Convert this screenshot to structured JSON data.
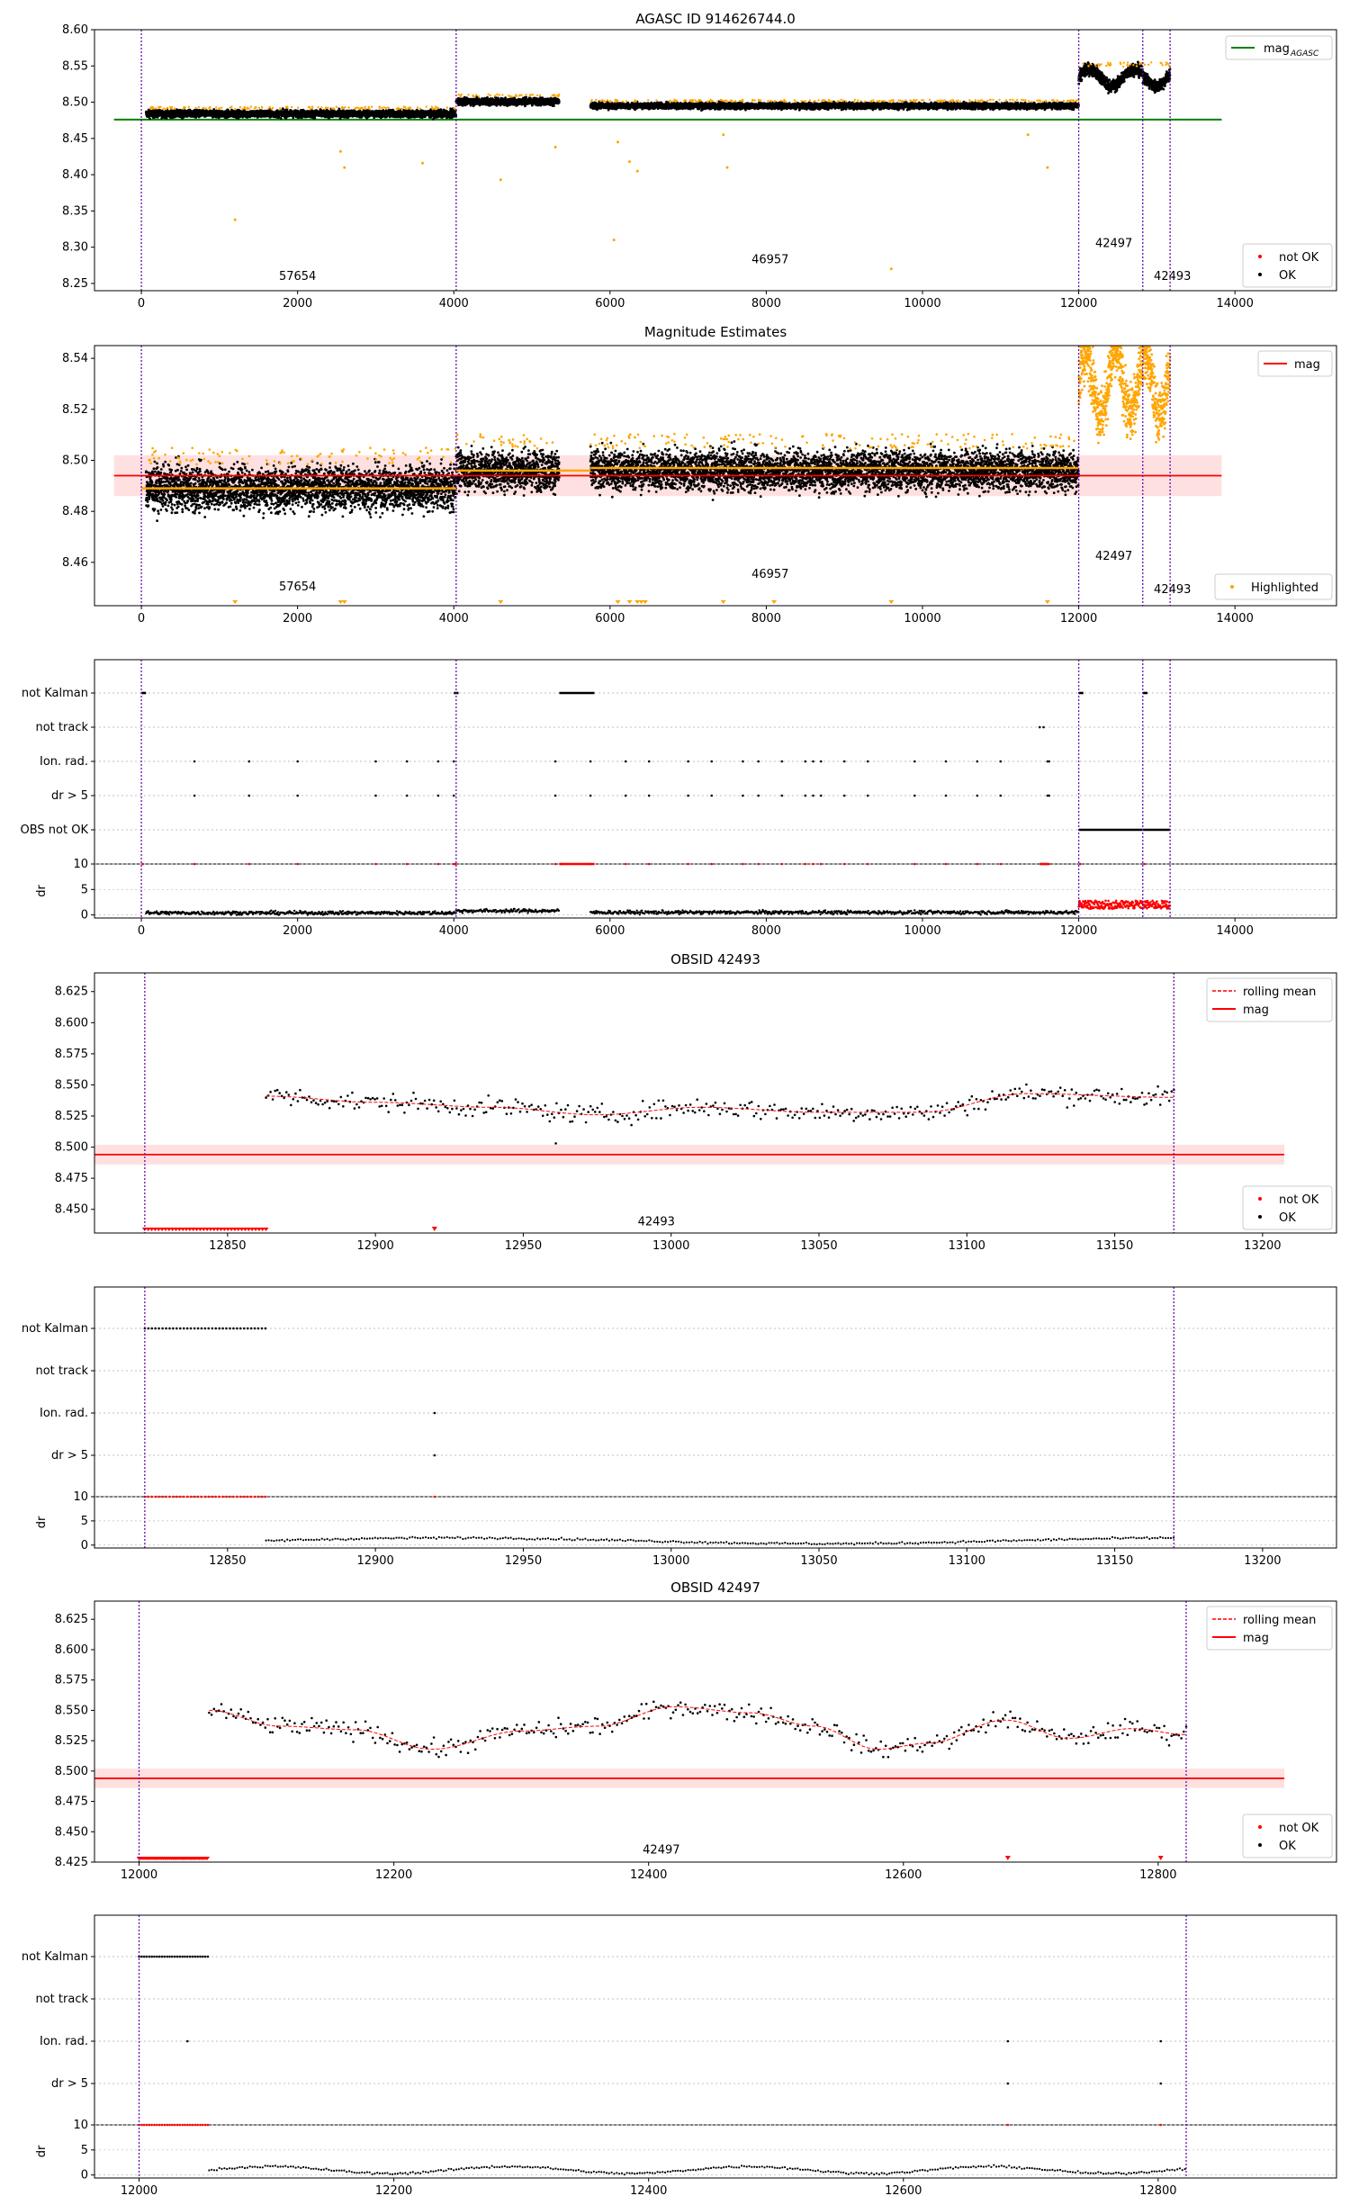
{
  "chart_data": [
    {
      "type": "scatter",
      "title": "AGASC ID 914626744.0",
      "xlim": [
        -600,
        15300
      ],
      "ylim": [
        8.24,
        8.6
      ],
      "xticks": [
        0,
        2000,
        4000,
        6000,
        8000,
        10000,
        12000,
        14000
      ],
      "yticks": [
        8.25,
        8.3,
        8.35,
        8.4,
        8.45,
        8.5,
        8.55,
        8.6
      ],
      "reference_line": {
        "name": "mag",
        "subscript": "AGASC",
        "value": 8.476,
        "color": "#008000"
      },
      "obs_boundaries": [
        0,
        4030,
        12000,
        12820,
        13170
      ],
      "series": [
        {
          "name": "not OK",
          "color": "#ff0000"
        },
        {
          "name": "OK",
          "color": "#000000"
        }
      ],
      "segments": [
        {
          "x": [
            60,
            4030
          ],
          "center": 8.484,
          "spread": 0.007
        },
        {
          "x": [
            4030,
            5350
          ],
          "center": 8.501,
          "spread": 0.007
        },
        {
          "x": [
            5750,
            12000
          ],
          "center": 8.495,
          "spread": 0.006
        },
        {
          "x": [
            12000,
            13170
          ],
          "center": 8.538,
          "spread": 0.012
        }
      ],
      "outliers": [
        {
          "x": 1200,
          "y": 8.338
        },
        {
          "x": 2550,
          "y": 8.432
        },
        {
          "x": 2600,
          "y": 8.41
        },
        {
          "x": 3600,
          "y": 8.416
        },
        {
          "x": 4600,
          "y": 8.393
        },
        {
          "x": 5300,
          "y": 8.438
        },
        {
          "x": 6050,
          "y": 8.31
        },
        {
          "x": 6100,
          "y": 8.445
        },
        {
          "x": 6250,
          "y": 8.418
        },
        {
          "x": 6350,
          "y": 8.405
        },
        {
          "x": 7450,
          "y": 8.455
        },
        {
          "x": 7500,
          "y": 8.41
        },
        {
          "x": 9600,
          "y": 8.27
        },
        {
          "x": 11600,
          "y": 8.41
        },
        {
          "x": 11350,
          "y": 8.455
        }
      ],
      "obs_labels": [
        {
          "text": "57654",
          "x": 2000,
          "y": 8.255
        },
        {
          "text": "46957",
          "x": 8050,
          "y": 8.278
        },
        {
          "text": "42497",
          "x": 12450,
          "y": 8.3
        },
        {
          "text": "42493",
          "x": 13200,
          "y": 8.255
        }
      ],
      "legend": {
        "top": "top-right",
        "bottom": "bottom-right"
      }
    },
    {
      "type": "scatter",
      "title": "Magnitude Estimates",
      "xlim": [
        -600,
        15300
      ],
      "ylim": [
        8.443,
        8.545
      ],
      "xticks": [
        0,
        2000,
        4000,
        6000,
        8000,
        10000,
        12000,
        14000
      ],
      "yticks": [
        8.46,
        8.48,
        8.5,
        8.52,
        8.54
      ],
      "mag_line": {
        "name": "mag",
        "value": 8.494,
        "band": [
          8.486,
          8.502
        ],
        "color": "#ff0000"
      },
      "obs_boundaries": [
        0,
        4030,
        12000,
        12820,
        13170
      ],
      "segments": [
        {
          "x": [
            60,
            4030
          ],
          "center": 8.489,
          "spread": 0.011
        },
        {
          "x": [
            4030,
            5350
          ],
          "center": 8.496,
          "spread": 0.01
        },
        {
          "x": [
            5750,
            12000
          ],
          "center": 8.496,
          "spread": 0.01
        },
        {
          "x": [
            12000,
            13170
          ],
          "center": 8.53,
          "spread": 0.013
        }
      ],
      "segment_means": [
        {
          "x": [
            0,
            4030
          ],
          "mean": 8.489
        },
        {
          "x": [
            4030,
            5750
          ],
          "mean": 8.496
        },
        {
          "x": [
            5750,
            12000
          ],
          "mean": 8.497
        }
      ],
      "highlighted": {
        "name": "Highlighted",
        "color": "#ffa500"
      },
      "obs_labels": [
        {
          "text": "57654",
          "x": 2000,
          "y": 8.449
        },
        {
          "text": "46957",
          "x": 8050,
          "y": 8.454
        },
        {
          "text": "42497",
          "x": 12450,
          "y": 8.461
        },
        {
          "text": "42493",
          "x": 13200,
          "y": 8.448
        }
      ],
      "legend": {
        "top": "top-right",
        "bottom": "bottom-right"
      }
    },
    {
      "type": "scatter",
      "xlim": [
        -600,
        15300
      ],
      "xticks": [
        0,
        2000,
        4000,
        6000,
        8000,
        10000,
        12000,
        14000
      ],
      "flags": [
        "not Kalman",
        "not track",
        "Ion. rad.",
        "dr > 5",
        "OBS not OK"
      ],
      "dr_ylabel": "dr",
      "dr_ticks": [
        0,
        5,
        10
      ],
      "obs_boundaries": [
        0,
        4030,
        12000,
        12820,
        13170
      ],
      "not_kalman_ranges": [
        [
          0,
          60
        ],
        [
          4000,
          4060
        ],
        [
          5350,
          5800
        ],
        [
          12000,
          12060
        ],
        [
          12820,
          12880
        ]
      ],
      "not_track_points": [
        11500,
        11550
      ],
      "ion_rad_points": [
        680,
        1380,
        2000,
        3000,
        3400,
        3800,
        4000,
        5300,
        5750,
        6200,
        6500,
        7000,
        7300,
        7700,
        7900,
        8200,
        8500,
        8600,
        8700,
        9000,
        9300,
        9900,
        10300,
        10700,
        11000,
        11600,
        11620
      ],
      "obs_not_ok_range": [
        12000,
        13170
      ]
    },
    {
      "type": "scatter",
      "title": "OBSID 42493",
      "xlim": [
        12805,
        13225
      ],
      "ylim": [
        8.431,
        8.64
      ],
      "xticks": [
        12850,
        12900,
        12950,
        13000,
        13050,
        13100,
        13150,
        13200
      ],
      "yticks": [
        8.45,
        8.475,
        8.5,
        8.525,
        8.55,
        8.575,
        8.6,
        8.625
      ],
      "obs_boundaries": [
        12822,
        13170
      ],
      "mag_line": {
        "name": "mag",
        "value": 8.494,
        "band": [
          8.486,
          8.502
        ]
      },
      "rolling_mean": {
        "name": "rolling mean",
        "x": [
          12863,
          12900,
          12940,
          12975,
          13010,
          13050,
          13085,
          13120,
          13170
        ],
        "y": [
          8.541,
          8.536,
          8.532,
          8.526,
          8.532,
          8.528,
          8.528,
          8.543,
          8.54
        ]
      },
      "good_range": [
        12863,
        13170
      ],
      "bad_range": [
        12822,
        12863
      ],
      "bad_points": [
        12920
      ],
      "outliers": [
        {
          "x": 12961,
          "y": 8.503
        }
      ],
      "obs_labels": [
        {
          "text": "42493",
          "x": 12995,
          "y": 8.437
        }
      ],
      "legend": {
        "top": "top-right",
        "bottom": "bottom-right"
      }
    },
    {
      "type": "scatter",
      "xlim": [
        12805,
        13225
      ],
      "xticks": [
        12850,
        12900,
        12950,
        13000,
        13050,
        13100,
        13150,
        13200
      ],
      "flags": [
        "not Kalman",
        "not track",
        "Ion. rad.",
        "dr > 5"
      ],
      "dr_ylabel": "dr",
      "dr_ticks": [
        0,
        5,
        10
      ],
      "obs_boundaries": [
        12822,
        13170
      ],
      "not_kalman_range": [
        12822,
        12863
      ],
      "ion_rad_points": [
        12920
      ],
      "dr_gt5_points": [
        12920
      ]
    },
    {
      "type": "scatter",
      "title": "OBSID 42497",
      "xlim": [
        11965,
        12940
      ],
      "ylim": [
        8.425,
        8.64
      ],
      "xticks": [
        12000,
        12200,
        12400,
        12600,
        12800
      ],
      "yticks": [
        8.425,
        8.45,
        8.475,
        8.5,
        8.525,
        8.55,
        8.575,
        8.6,
        8.625
      ],
      "obs_boundaries": [
        12000,
        12822
      ],
      "mag_line": {
        "name": "mag",
        "value": 8.494,
        "band": [
          8.486,
          8.502
        ]
      },
      "rolling_mean": {
        "name": "rolling mean",
        "x": [
          12055,
          12110,
          12170,
          12230,
          12300,
          12360,
          12420,
          12480,
          12530,
          12580,
          12620,
          12680,
          12730,
          12780,
          12822
        ],
        "y": [
          8.55,
          8.537,
          8.534,
          8.518,
          8.533,
          8.537,
          8.553,
          8.548,
          8.537,
          8.518,
          8.523,
          8.542,
          8.527,
          8.535,
          8.53
        ]
      },
      "good_range": [
        12055,
        12822
      ],
      "bad_range": [
        12000,
        12055
      ],
      "bad_points": [
        12682,
        12802
      ],
      "obs_labels": [
        {
          "text": "42497",
          "x": 12410,
          "y": 8.432
        }
      ],
      "legend": {
        "top": "top-right",
        "bottom": "bottom-right"
      }
    },
    {
      "type": "scatter",
      "xlim": [
        11965,
        12940
      ],
      "xticks": [
        12000,
        12200,
        12400,
        12600,
        12800
      ],
      "flags": [
        "not Kalman",
        "not track",
        "Ion. rad.",
        "dr > 5"
      ],
      "dr_ylabel": "dr",
      "dr_ticks": [
        0,
        5,
        10
      ],
      "obs_boundaries": [
        12000,
        12822
      ],
      "not_kalman_range": [
        12000,
        12055
      ],
      "ion_rad_points": [
        12038,
        12682,
        12802
      ],
      "dr_gt5_points": [
        12682,
        12802
      ]
    }
  ]
}
